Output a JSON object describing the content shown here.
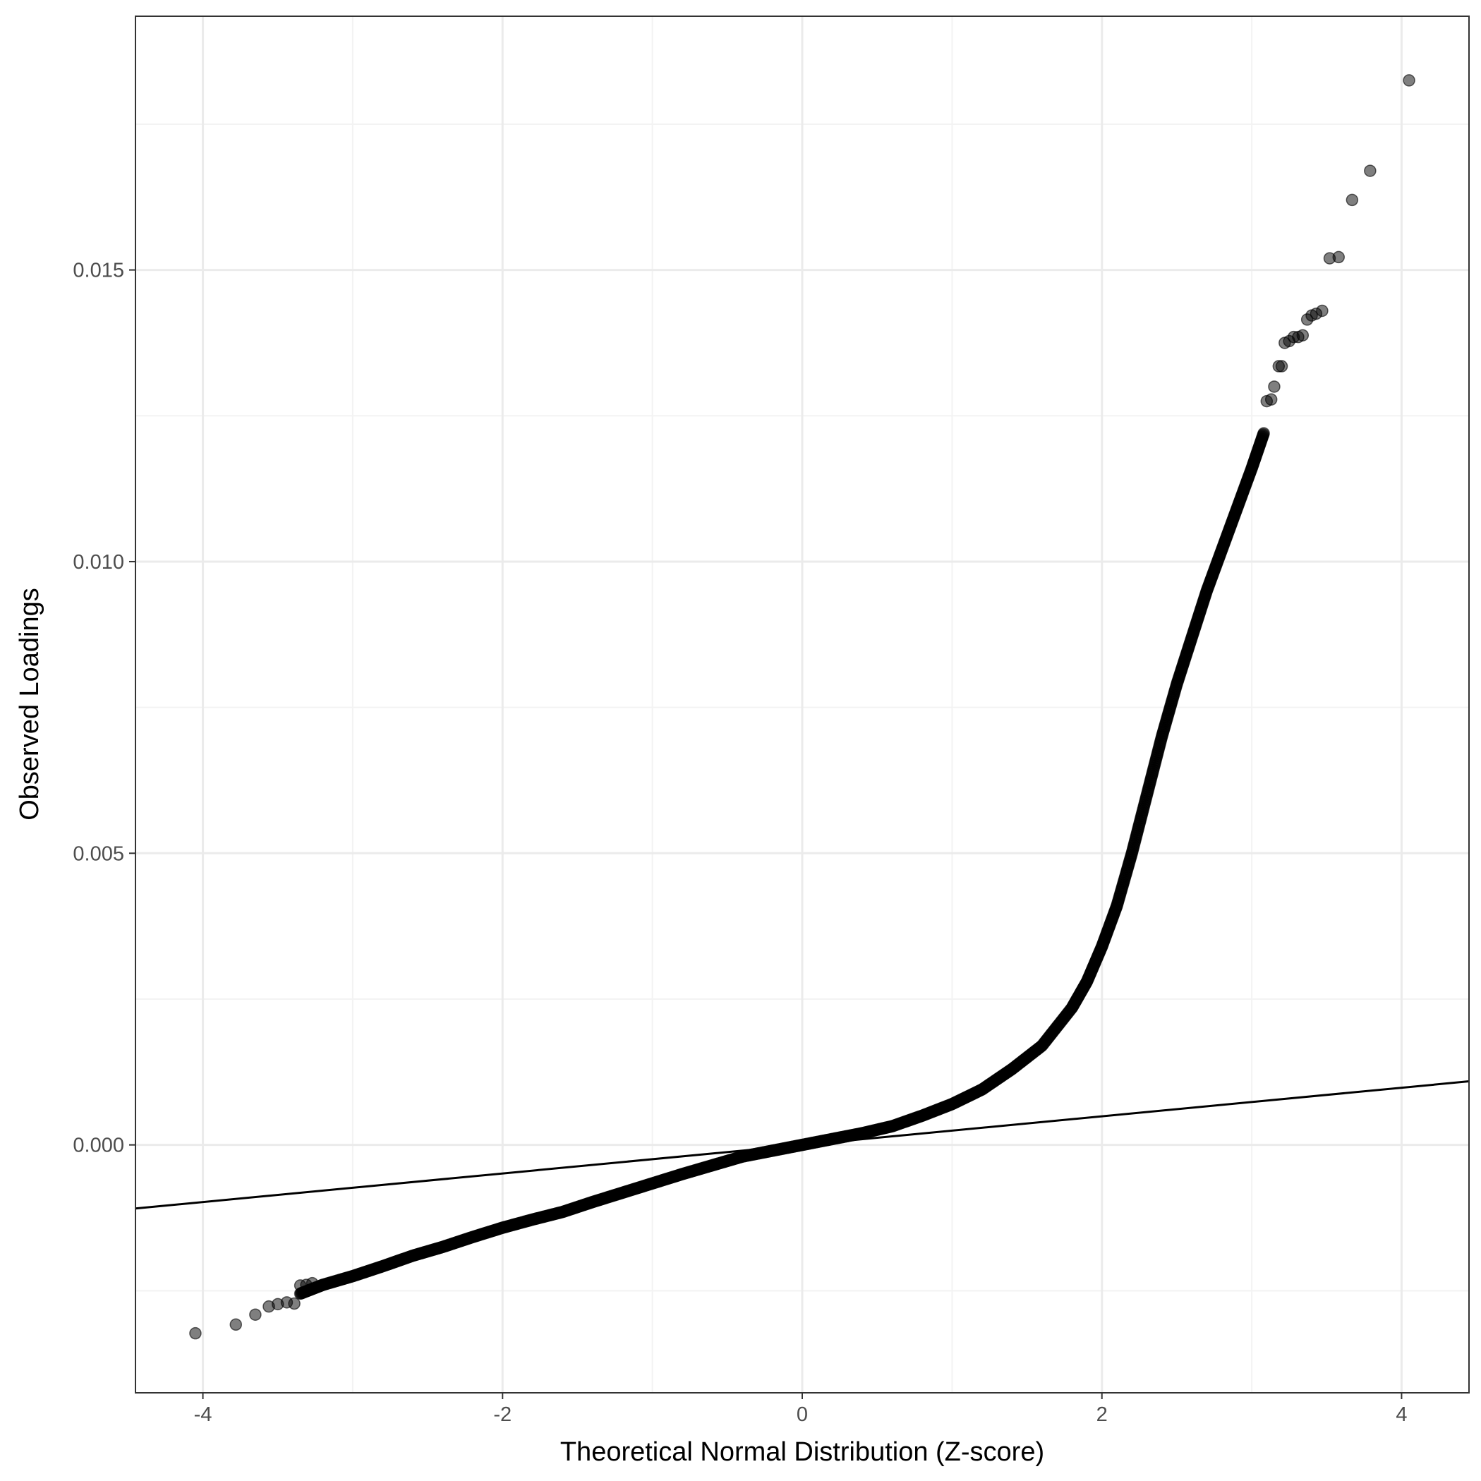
{
  "chart_data": {
    "type": "scatter",
    "title": "",
    "xlabel": "Theoretical Normal Distribution (Z-score)",
    "ylabel": "Observed Loadings",
    "xlim": [
      -4.45,
      4.45
    ],
    "ylim": [
      -0.00425,
      0.01935
    ],
    "x_ticks": [
      -4,
      -2,
      0,
      2,
      4
    ],
    "x_tick_labels": [
      "-4",
      "-2",
      "0",
      "2",
      "4"
    ],
    "y_ticks": [
      0.0,
      0.005,
      0.01,
      0.015
    ],
    "y_tick_labels": [
      "0.000",
      "0.005",
      "0.010",
      "0.015"
    ],
    "grid": true,
    "legend": "none",
    "colors": {
      "points": "#000000",
      "reference_line": "#000000",
      "grid_major": "#ebebeb",
      "grid_minor": "#f3f3f3",
      "panel_border": "#333333"
    },
    "reference_line": {
      "slope": 0.000245,
      "intercept": 0.0
    },
    "curve_anchors": [
      [
        -3.35,
        -0.00255
      ],
      [
        -3.2,
        -0.0024
      ],
      [
        -3.0,
        -0.00225
      ],
      [
        -2.8,
        -0.00208
      ],
      [
        -2.6,
        -0.0019
      ],
      [
        -2.4,
        -0.00175
      ],
      [
        -2.2,
        -0.00158
      ],
      [
        -2.0,
        -0.00142
      ],
      [
        -1.8,
        -0.00128
      ],
      [
        -1.6,
        -0.00115
      ],
      [
        -1.4,
        -0.00098
      ],
      [
        -1.2,
        -0.00082
      ],
      [
        -1.0,
        -0.00066
      ],
      [
        -0.8,
        -0.0005
      ],
      [
        -0.6,
        -0.00035
      ],
      [
        -0.4,
        -0.0002
      ],
      [
        -0.2,
        -0.0001
      ],
      [
        0.0,
        0.0
      ],
      [
        0.2,
        0.0001
      ],
      [
        0.4,
        0.0002
      ],
      [
        0.6,
        0.00032
      ],
      [
        0.8,
        0.0005
      ],
      [
        1.0,
        0.0007
      ],
      [
        1.2,
        0.00095
      ],
      [
        1.4,
        0.0013
      ],
      [
        1.6,
        0.0017
      ],
      [
        1.8,
        0.00235
      ],
      [
        1.9,
        0.0028
      ],
      [
        2.0,
        0.0034
      ],
      [
        2.1,
        0.0041
      ],
      [
        2.2,
        0.005
      ],
      [
        2.3,
        0.006
      ],
      [
        2.4,
        0.007
      ],
      [
        2.5,
        0.0079
      ],
      [
        2.6,
        0.0087
      ],
      [
        2.7,
        0.0095
      ],
      [
        2.8,
        0.0102
      ],
      [
        2.9,
        0.0109
      ],
      [
        3.0,
        0.0116
      ],
      [
        3.08,
        0.0122
      ]
    ],
    "tail_points": [
      [
        -4.05,
        -0.00323
      ],
      [
        -3.78,
        -0.00308
      ],
      [
        -3.65,
        -0.00291
      ],
      [
        -3.56,
        -0.00277
      ],
      [
        -3.5,
        -0.00273
      ],
      [
        -3.44,
        -0.0027
      ],
      [
        -3.39,
        -0.00272
      ],
      [
        -3.35,
        -0.00241
      ],
      [
        -3.31,
        -0.0024
      ],
      [
        -3.27,
        -0.00237
      ],
      [
        3.1,
        0.01275
      ],
      [
        3.13,
        0.01278
      ],
      [
        3.15,
        0.013
      ],
      [
        3.18,
        0.01335
      ],
      [
        3.2,
        0.01335
      ],
      [
        3.22,
        0.01375
      ],
      [
        3.25,
        0.01378
      ],
      [
        3.28,
        0.01385
      ],
      [
        3.31,
        0.01385
      ],
      [
        3.34,
        0.01388
      ],
      [
        3.37,
        0.01415
      ],
      [
        3.4,
        0.01422
      ],
      [
        3.43,
        0.01425
      ],
      [
        3.47,
        0.0143
      ],
      [
        3.52,
        0.0152
      ],
      [
        3.58,
        0.01522
      ],
      [
        3.67,
        0.0162
      ],
      [
        3.79,
        0.0167
      ],
      [
        4.05,
        0.01825
      ]
    ]
  }
}
